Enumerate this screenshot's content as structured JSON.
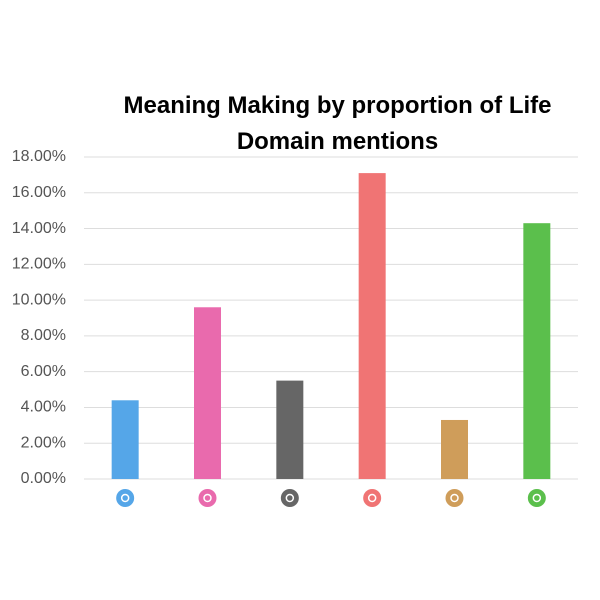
{
  "chart_data": {
    "type": "bar",
    "title": "Meaning Making by proportion of Life Domain mentions",
    "categories": [
      null,
      null,
      null,
      null,
      null,
      null
    ],
    "values": [
      4.4,
      9.6,
      5.5,
      17.1,
      3.3,
      14.3
    ],
    "colors": [
      "#55a6e8",
      "#e96aad",
      "#666666",
      "#f07474",
      "#cf9d5a",
      "#5bbf4c"
    ],
    "ylim": [
      0,
      18
    ],
    "yticks": [
      {
        "value": 0,
        "label": "0.00%"
      },
      {
        "value": 2,
        "label": "2.00%"
      },
      {
        "value": 4,
        "label": "4.00%"
      },
      {
        "value": 6,
        "label": "6.00%"
      },
      {
        "value": 8,
        "label": "8.00%"
      },
      {
        "value": 10,
        "label": "10.00%"
      },
      {
        "value": 12,
        "label": "12.00%"
      },
      {
        "value": 14,
        "label": "14.00%"
      },
      {
        "value": 16,
        "label": "16.00%"
      },
      {
        "value": 18,
        "label": "18.00%"
      }
    ],
    "grid": true
  }
}
